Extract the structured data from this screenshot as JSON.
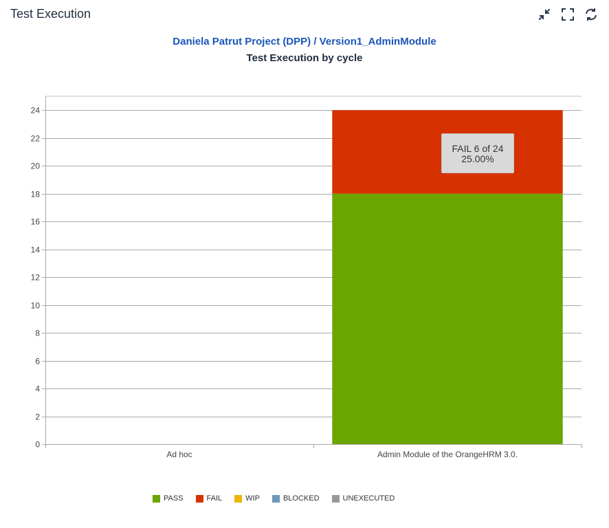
{
  "panel": {
    "title": "Test Execution",
    "icons": [
      "collapse-icon",
      "fullscreen-icon",
      "refresh-icon"
    ]
  },
  "header": {
    "project_link": "Daniela Patrut Project (DPP)",
    "separator": "/",
    "version_link": "Version1_AdminModule",
    "link_color": "#1a56b8"
  },
  "tooltip": {
    "line1": "FAIL 6 of 24",
    "line2": "25.00%"
  },
  "legend": [
    {
      "label": "PASS",
      "color": "#6aa500"
    },
    {
      "label": "FAIL",
      "color": "#d53200"
    },
    {
      "label": "WIP",
      "color": "#f0b400"
    },
    {
      "label": "BLOCKED",
      "color": "#6d98b8"
    },
    {
      "label": "UNEXECUTED",
      "color": "#999999"
    }
  ],
  "chart_data": {
    "type": "bar",
    "stacked": true,
    "title": "Test Execution by cycle",
    "categories": [
      "Ad hoc",
      "Admin Module of the OrangeHRM 3.0."
    ],
    "series": [
      {
        "name": "PASS",
        "color": "#6aa500",
        "values": [
          0,
          18
        ]
      },
      {
        "name": "FAIL",
        "color": "#d53200",
        "values": [
          0,
          6
        ]
      },
      {
        "name": "WIP",
        "color": "#f0b400",
        "values": [
          0,
          0
        ]
      },
      {
        "name": "BLOCKED",
        "color": "#6d98b8",
        "values": [
          0,
          0
        ]
      },
      {
        "name": "UNEXECUTED",
        "color": "#999999",
        "values": [
          0,
          0
        ]
      }
    ],
    "ylim": [
      0,
      25
    ],
    "yticks": [
      0,
      2,
      4,
      6,
      8,
      10,
      12,
      14,
      16,
      18,
      20,
      22,
      24
    ],
    "grid": true,
    "legend_position": "bottom"
  }
}
